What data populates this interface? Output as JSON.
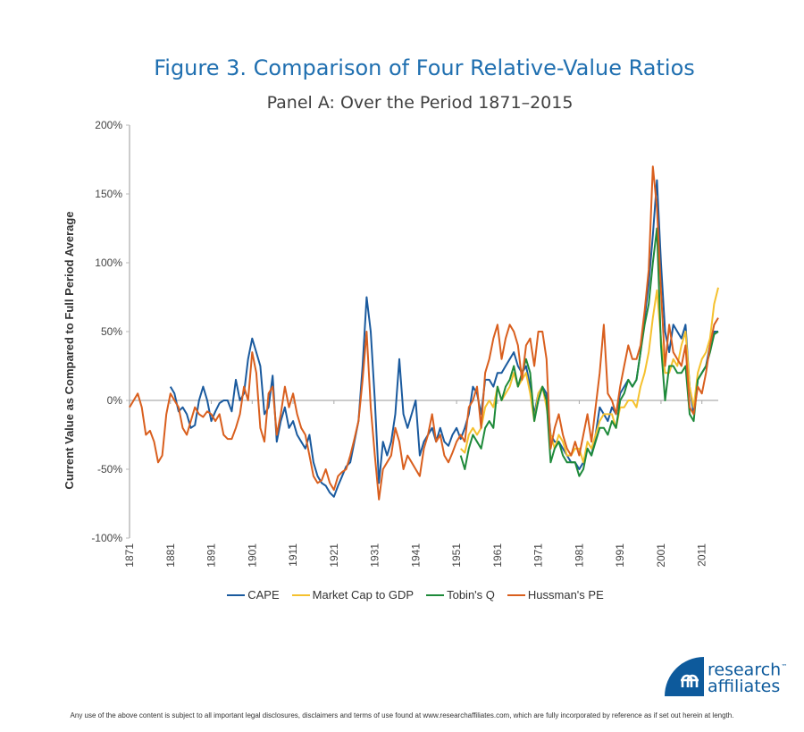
{
  "colors": {
    "title": "#1f6fb0",
    "CAPE": "#1a5a9e",
    "Market Cap to GDP": "#f5c12e",
    "Tobin's Q": "#1e8a3a",
    "Hussman's PE": "#d95f1e"
  },
  "chart_data": {
    "type": "line",
    "title": "Figure 3.  Comparison of Four Relative-Value Ratios",
    "subtitle": "Panel A: Over the Period 1871–2015",
    "ylabel": "Current Value as Compared  to Full Period Average",
    "xlabel": "",
    "xlim": [
      1871,
      2015
    ],
    "ylim": [
      -100,
      200
    ],
    "yticks": [
      "200%",
      "150%",
      "100%",
      "50%",
      "0%",
      "-50%",
      "-100%"
    ],
    "ytick_values": [
      200,
      150,
      100,
      50,
      0,
      -50,
      -100
    ],
    "xticks": [
      "1871",
      "1881",
      "1891",
      "1901",
      "1911",
      "1921",
      "1931",
      "1941",
      "1951",
      "1961",
      "1971",
      "1981",
      "1991",
      "2001",
      "2011"
    ],
    "legend_position": "bottom",
    "series": [
      {
        "name": "CAPE",
        "start": 1881,
        "values": [
          10,
          5,
          -8,
          -5,
          -10,
          -20,
          -18,
          0,
          10,
          0,
          -15,
          -8,
          -2,
          0,
          0,
          -8,
          15,
          0,
          5,
          30,
          45,
          35,
          25,
          -10,
          -5,
          18,
          -30,
          -15,
          -5,
          -20,
          -15,
          -25,
          -30,
          -35,
          -25,
          -45,
          -55,
          -60,
          -62,
          -67,
          -70,
          -62,
          -55,
          -48,
          -45,
          -30,
          -15,
          25,
          75,
          50,
          0,
          -60,
          -30,
          -40,
          -30,
          -10,
          30,
          -10,
          -20,
          -10,
          0,
          -40,
          -30,
          -25,
          -20,
          -30,
          -20,
          -30,
          -33,
          -25,
          -20,
          -28,
          -20,
          -10,
          10,
          5,
          -10,
          15,
          15,
          10,
          20,
          20,
          25,
          30,
          35,
          25,
          20,
          25,
          10,
          -10,
          5,
          10,
          5,
          -25,
          -30,
          -30,
          -35,
          -40,
          -45,
          -45,
          -50,
          -45,
          -35,
          -40,
          -25,
          -5,
          -10,
          -15,
          -5,
          -10,
          5,
          10,
          15,
          10,
          15,
          35,
          60,
          85,
          120,
          160,
          100,
          50,
          35,
          55,
          50,
          45,
          55,
          10,
          -10,
          15,
          20,
          25,
          40,
          50,
          50
        ]
      },
      {
        "name": "Market Cap to GDP",
        "start": 1952,
        "values": [
          -35,
          -38,
          -25,
          -20,
          -25,
          -20,
          -5,
          0,
          -5,
          10,
          0,
          5,
          10,
          20,
          10,
          15,
          20,
          5,
          -15,
          5,
          10,
          -5,
          -25,
          -35,
          -25,
          -30,
          -40,
          -40,
          -35,
          -35,
          -45,
          -30,
          -35,
          -25,
          -15,
          -10,
          -10,
          -10,
          -20,
          -5,
          -5,
          0,
          0,
          -5,
          10,
          20,
          35,
          60,
          80,
          45,
          20,
          20,
          30,
          25,
          40,
          50,
          10,
          -5,
          20,
          30,
          35,
          45,
          70,
          82
        ]
      },
      {
        "name": "Tobin's Q",
        "start": 1952,
        "values": [
          -40,
          -50,
          -35,
          -25,
          -30,
          -35,
          -20,
          -15,
          -20,
          10,
          0,
          10,
          15,
          25,
          10,
          20,
          30,
          20,
          -15,
          0,
          10,
          0,
          -45,
          -35,
          -30,
          -40,
          -45,
          -45,
          -45,
          -55,
          -50,
          -35,
          -40,
          -30,
          -20,
          -20,
          -25,
          -15,
          -20,
          0,
          5,
          15,
          10,
          15,
          35,
          55,
          70,
          100,
          125,
          40,
          0,
          25,
          25,
          20,
          20,
          25,
          -10,
          -15,
          15,
          20,
          25,
          35,
          48,
          50
        ]
      },
      {
        "name": "Hussman's PE",
        "start": 1871,
        "values": [
          -5,
          0,
          5,
          -5,
          -25,
          -22,
          -30,
          -45,
          -40,
          -10,
          5,
          0,
          -5,
          -20,
          -25,
          -15,
          -5,
          -10,
          -12,
          -8,
          -10,
          -15,
          -10,
          -25,
          -28,
          -28,
          -20,
          -10,
          10,
          0,
          35,
          20,
          -20,
          -30,
          5,
          10,
          -25,
          -10,
          10,
          -5,
          5,
          -10,
          -20,
          -25,
          -40,
          -55,
          -60,
          -58,
          -50,
          -60,
          -65,
          -55,
          -52,
          -50,
          -40,
          -28,
          -15,
          15,
          50,
          -5,
          -40,
          -72,
          -50,
          -45,
          -40,
          -20,
          -30,
          -50,
          -40,
          -45,
          -50,
          -55,
          -35,
          -25,
          -10,
          -30,
          -25,
          -40,
          -45,
          -38,
          -30,
          -25,
          -30,
          -5,
          0,
          10,
          -20,
          20,
          30,
          45,
          55,
          30,
          45,
          55,
          50,
          40,
          15,
          40,
          45,
          25,
          50,
          50,
          30,
          -35,
          -20,
          -10,
          -25,
          -35,
          -40,
          -30,
          -40,
          -25,
          -10,
          -30,
          -5,
          20,
          55,
          5,
          0,
          -10,
          10,
          25,
          40,
          30,
          30,
          40,
          65,
          95,
          170,
          140,
          80,
          25,
          55,
          35,
          30,
          25,
          40,
          -5,
          -10,
          10,
          5,
          20,
          40,
          55,
          60
        ]
      }
    ]
  },
  "logo": {
    "line1": "research",
    "line2": "affiliates",
    "tm": "™"
  },
  "disclaimer": "Any use of the above content is subject to all important legal disclosures, disclaimers and terms of use found at www.researchaffiliates.com, which are fully incorporated by reference as if set out herein at length."
}
